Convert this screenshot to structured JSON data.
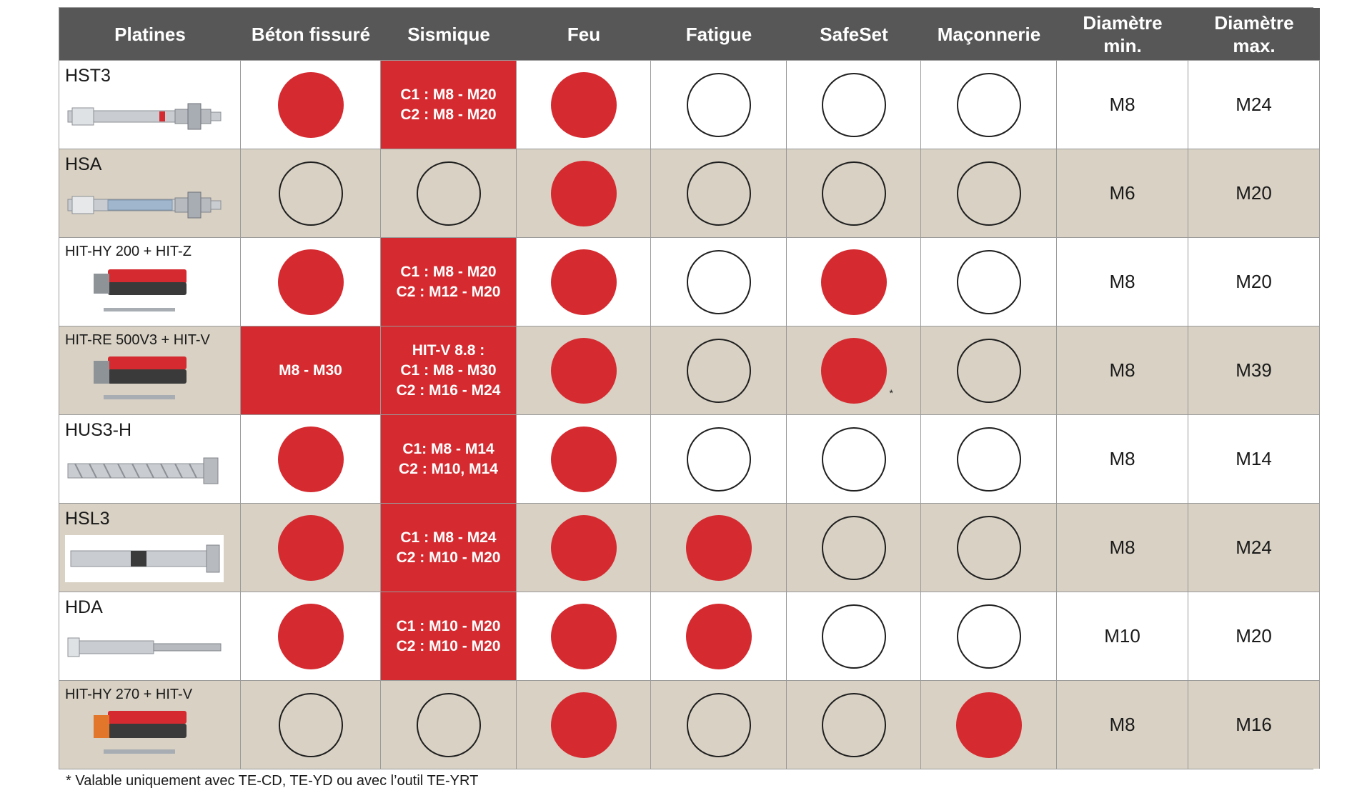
{
  "headers": [
    "Platines",
    "Béton fissuré",
    "Sismique",
    "Feu",
    "Fatigue",
    "SafeSet",
    "Maçonnerie",
    "Diamètre min.",
    "Diamètre max."
  ],
  "header_split": {
    "diam_min": [
      "Diamètre",
      "min."
    ],
    "diam_max": [
      "Diamètre",
      "max."
    ]
  },
  "rows": [
    {
      "name": "HST3",
      "image": "stud-anchor-image",
      "beton": "filled",
      "sismique": [
        "C1 : M8 - M20",
        "C2 : M8 - M20"
      ],
      "feu": "filled",
      "fatigue": "empty",
      "safeset": "empty",
      "maconnerie": "empty",
      "dmin": "M8",
      "dmax": "M24"
    },
    {
      "name": "HSA",
      "image": "stud-anchor-image",
      "beton": "empty",
      "sismique": "empty",
      "feu": "filled",
      "fatigue": "empty",
      "safeset": "empty",
      "maconnerie": "empty",
      "dmin": "M6",
      "dmax": "M20"
    },
    {
      "name": "HIT-HY 200 + HIT-Z",
      "image": "adhesive-cartridge-image",
      "beton": "filled",
      "sismique": [
        "C1 : M8 - M20",
        "C2 : M12 - M20"
      ],
      "feu": "filled",
      "fatigue": "empty",
      "safeset": "filled",
      "maconnerie": "empty",
      "dmin": "M8",
      "dmax": "M20"
    },
    {
      "name": "HIT-RE 500V3 + HIT-V",
      "image": "adhesive-cartridge-image",
      "beton_text": "M8 - M30",
      "sismique": [
        "HIT-V 8.8 :",
        "C1 : M8 - M30",
        "C2 : M16 - M24"
      ],
      "feu": "filled",
      "fatigue": "empty",
      "safeset": "filled",
      "safeset_star": "*",
      "maconnerie": "empty",
      "dmin": "M8",
      "dmax": "M39"
    },
    {
      "name": "HUS3-H",
      "image": "screw-anchor-image",
      "beton": "filled",
      "sismique": [
        "C1: M8 - M14",
        "C2 : M10, M14"
      ],
      "feu": "filled",
      "fatigue": "empty",
      "safeset": "empty",
      "maconnerie": "empty",
      "dmin": "M8",
      "dmax": "M14"
    },
    {
      "name": "HSL3",
      "image": "sleeve-anchor-image",
      "beton": "filled",
      "sismique": [
        "C1 : M8 - M24",
        "C2 : M10 - M20"
      ],
      "feu": "filled",
      "fatigue": "filled",
      "safeset": "empty",
      "maconnerie": "empty",
      "dmin": "M8",
      "dmax": "M24"
    },
    {
      "name": "HDA",
      "image": "undercut-anchor-image",
      "beton": "filled",
      "sismique": [
        "C1 : M10 - M20",
        "C2 : M10 - M20"
      ],
      "feu": "filled",
      "fatigue": "filled",
      "safeset": "empty",
      "maconnerie": "empty",
      "dmin": "M10",
      "dmax": "M20"
    },
    {
      "name": "HIT-HY 270 + HIT-V",
      "image": "adhesive-cartridge-image",
      "beton": "empty",
      "sismique": "empty",
      "feu": "filled",
      "fatigue": "empty",
      "safeset": "empty",
      "maconnerie": "filled",
      "dmin": "M8",
      "dmax": "M16"
    }
  ],
  "footnote": "* Valable uniquement avec TE-CD, TE-YD ou avec l’outil TE-YRT",
  "colors": {
    "header_bg": "#575757",
    "accent_red": "#d52b30",
    "row_beige": "#d8d1c4",
    "row_white": "#ffffff"
  }
}
